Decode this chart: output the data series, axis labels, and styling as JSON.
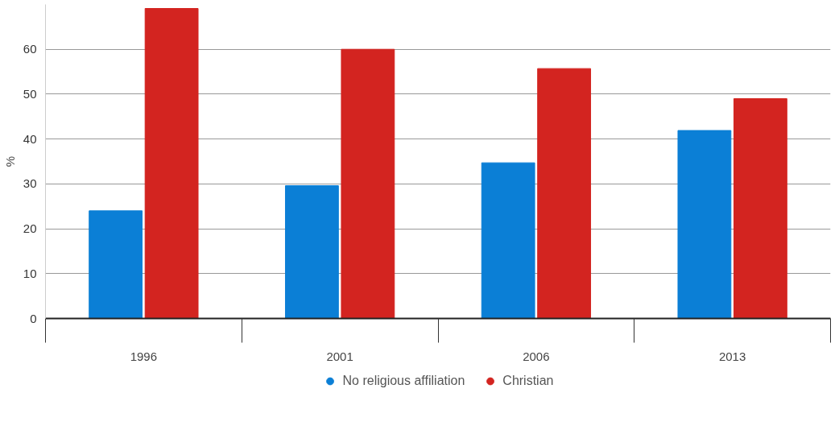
{
  "chart_data": {
    "type": "bar",
    "ylabel": "%",
    "categories": [
      "1996",
      "2001",
      "2006",
      "2013"
    ],
    "series": [
      {
        "name": "No religious affiliation",
        "color": "#0b7fd6",
        "values": [
          24.0,
          29.6,
          34.7,
          41.9
        ]
      },
      {
        "name": "Christian",
        "color": "#d32420",
        "values": [
          69.1,
          60.0,
          55.7,
          49.0
        ]
      }
    ],
    "ylim": [
      0,
      70
    ],
    "yticks": [
      0,
      10,
      20,
      30,
      40,
      50,
      60
    ],
    "grid": "y",
    "legend": "bottom"
  }
}
